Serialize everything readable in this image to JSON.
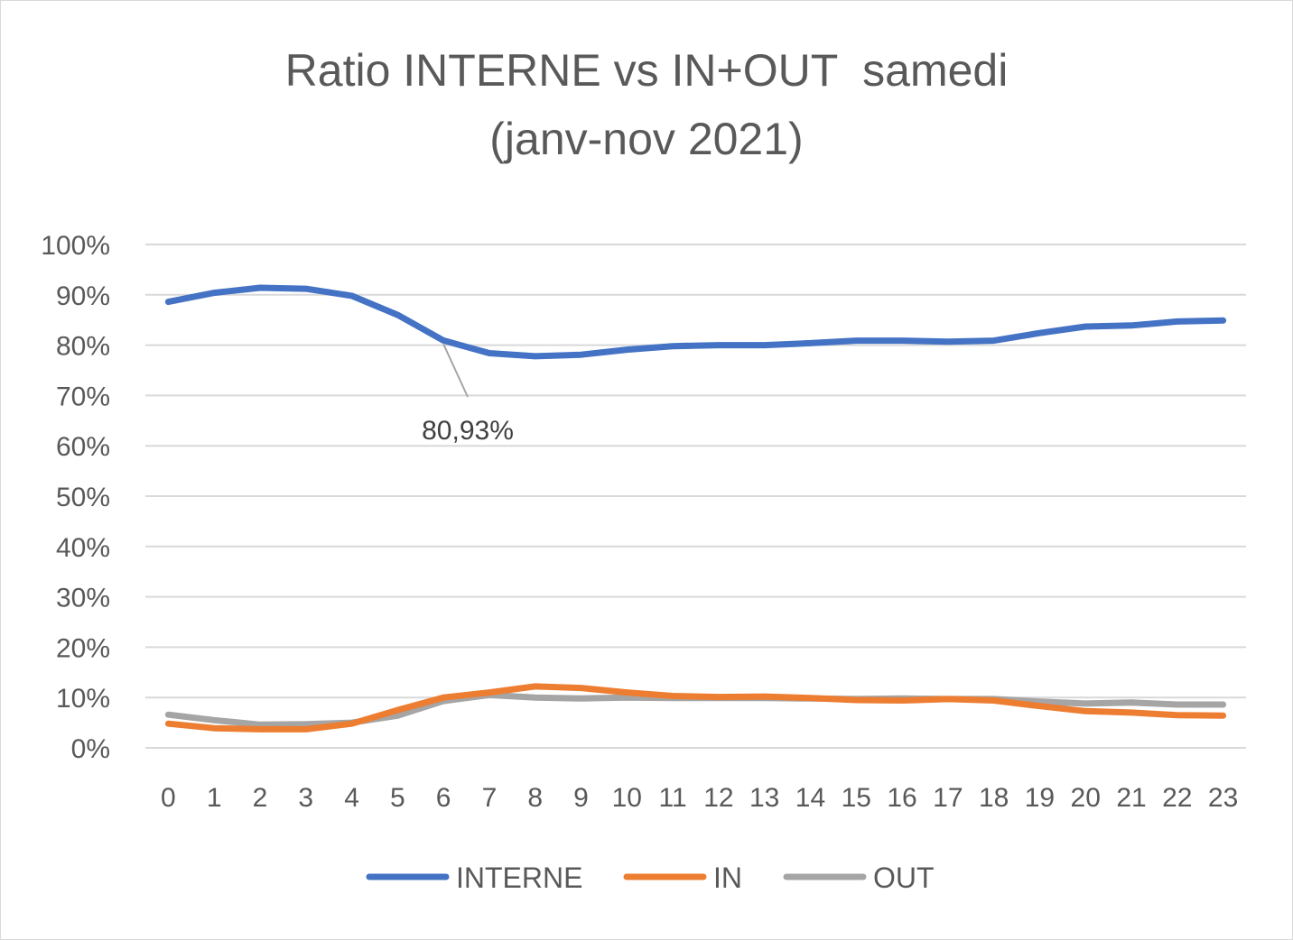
{
  "chart_data": {
    "type": "line",
    "title_line1": "Ratio INTERNE vs IN+OUT  samedi",
    "title_line2": "(janv-nov 2021)",
    "xlabel": "",
    "ylabel": "",
    "categories": [
      "0",
      "1",
      "2",
      "3",
      "4",
      "5",
      "6",
      "7",
      "8",
      "9",
      "10",
      "11",
      "12",
      "13",
      "14",
      "15",
      "16",
      "17",
      "18",
      "19",
      "20",
      "21",
      "22",
      "23"
    ],
    "ylim": [
      0,
      100
    ],
    "yticks": [
      "0%",
      "10%",
      "20%",
      "30%",
      "40%",
      "50%",
      "60%",
      "70%",
      "80%",
      "90%",
      "100%"
    ],
    "grid": true,
    "legend_position": "bottom",
    "series": [
      {
        "name": "INTERNE",
        "color": "#4472C4",
        "values": [
          88.6,
          90.4,
          91.4,
          91.2,
          89.8,
          86.0,
          80.93,
          78.4,
          77.8,
          78.1,
          79.1,
          79.8,
          80.0,
          80.0,
          80.4,
          80.9,
          80.9,
          80.7,
          80.9,
          82.4,
          83.7,
          83.9,
          84.7,
          84.9
        ]
      },
      {
        "name": "IN",
        "color": "#ED7D31",
        "values": [
          4.8,
          3.9,
          3.7,
          3.7,
          4.8,
          7.5,
          10.0,
          11.0,
          12.2,
          11.9,
          11.0,
          10.3,
          10.1,
          10.2,
          9.9,
          9.5,
          9.4,
          9.7,
          9.4,
          8.3,
          7.3,
          7.0,
          6.5,
          6.4
        ]
      },
      {
        "name": "OUT",
        "color": "#A5A5A5",
        "values": [
          6.6,
          5.5,
          4.6,
          4.7,
          5.0,
          6.4,
          9.3,
          10.5,
          10.0,
          9.8,
          10.0,
          9.9,
          9.9,
          9.9,
          9.8,
          9.7,
          9.8,
          9.7,
          9.7,
          9.2,
          8.8,
          9.0,
          8.6,
          8.6
        ]
      }
    ],
    "annotation": {
      "series": "INTERNE",
      "index": 6,
      "text": "80,93%"
    }
  }
}
